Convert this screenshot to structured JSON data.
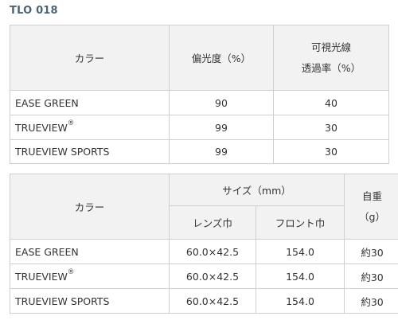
{
  "page_title": "TLO 018",
  "table1": {
    "headers": {
      "color": "カラー",
      "polarization": "偏光度（%）",
      "transmittance_line1": "可視光線",
      "transmittance_line2": "透過率（%）"
    },
    "rows": [
      {
        "name": "EASE GREEN",
        "mark": "",
        "polarization": "90",
        "transmittance": "40"
      },
      {
        "name": "TRUEVIEW",
        "mark": "®",
        "polarization": "99",
        "transmittance": "30"
      },
      {
        "name": "TRUEVIEW SPORTS",
        "mark": "",
        "polarization": "99",
        "transmittance": "30"
      }
    ]
  },
  "table2": {
    "headers": {
      "color": "カラー",
      "size": "サイズ（mm）",
      "lens_width": "レンズ巾",
      "front_width": "フロント巾",
      "weight_line1": "自重",
      "weight_line2": "（g）"
    },
    "rows": [
      {
        "name": "EASE GREEN",
        "mark": "",
        "lens": "60.0×42.5",
        "front": "154.0",
        "weight": "約30"
      },
      {
        "name": "TRUEVIEW",
        "mark": "®",
        "lens": "60.0×42.5",
        "front": "154.0",
        "weight": "約30"
      },
      {
        "name": "TRUEVIEW SPORTS",
        "mark": "",
        "lens": "60.0×42.5",
        "front": "154.0",
        "weight": "約30"
      }
    ]
  }
}
